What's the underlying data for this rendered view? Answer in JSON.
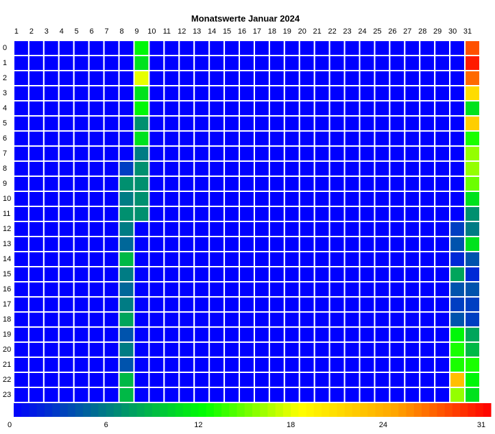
{
  "chart_data": {
    "type": "heatmap",
    "title": "Monatswerte Januar 2024",
    "x": [
      "1",
      "2",
      "3",
      "4",
      "5",
      "6",
      "7",
      "8",
      "9",
      "10",
      "11",
      "12",
      "13",
      "14",
      "15",
      "16",
      "17",
      "18",
      "19",
      "20",
      "21",
      "22",
      "23",
      "24",
      "25",
      "26",
      "27",
      "28",
      "29",
      "30",
      "31"
    ],
    "y": [
      "0",
      "1",
      "2",
      "3",
      "4",
      "5",
      "6",
      "7",
      "8",
      "9",
      "10",
      "11",
      "12",
      "13",
      "14",
      "15",
      "16",
      "17",
      "18",
      "19",
      "20",
      "21",
      "22",
      "23"
    ],
    "values": [
      [
        0,
        0,
        0,
        0,
        0,
        0,
        0,
        0,
        12,
        0,
        0,
        0,
        0,
        0,
        0,
        0,
        0,
        0,
        0,
        0,
        0,
        0,
        0,
        0,
        0,
        0,
        0,
        0,
        0,
        0,
        28
      ],
      [
        0,
        0,
        0,
        0,
        0,
        0,
        0,
        0,
        11,
        0,
        0,
        0,
        0,
        0,
        0,
        0,
        0,
        0,
        0,
        0,
        0,
        0,
        0,
        0,
        0,
        0,
        0,
        0,
        0,
        0,
        30
      ],
      [
        0,
        0,
        0,
        0,
        0,
        0,
        0,
        0,
        18,
        0,
        0,
        0,
        0,
        0,
        0,
        0,
        0,
        0,
        0,
        0,
        0,
        0,
        0,
        0,
        0,
        0,
        0,
        0,
        0,
        0,
        27
      ],
      [
        0,
        0,
        0,
        0,
        0,
        0,
        0,
        0,
        11,
        0,
        0,
        0,
        0,
        0,
        0,
        0,
        0,
        0,
        0,
        0,
        0,
        0,
        0,
        0,
        0,
        0,
        0,
        0,
        0,
        0,
        21
      ],
      [
        0,
        0,
        0,
        0,
        0,
        0,
        0,
        0,
        12,
        0,
        0,
        0,
        0,
        0,
        0,
        0,
        0,
        0,
        0,
        0,
        0,
        0,
        0,
        0,
        0,
        0,
        0,
        0,
        0,
        0,
        11
      ],
      [
        0,
        0,
        0,
        0,
        0,
        0,
        0,
        0,
        7,
        0,
        0,
        0,
        0,
        0,
        0,
        0,
        0,
        0,
        0,
        0,
        0,
        0,
        0,
        0,
        0,
        0,
        0,
        0,
        0,
        0,
        22
      ],
      [
        0,
        0,
        0,
        0,
        0,
        0,
        0,
        0,
        11,
        0,
        0,
        0,
        0,
        0,
        0,
        0,
        0,
        0,
        0,
        0,
        0,
        0,
        0,
        0,
        0,
        0,
        0,
        0,
        0,
        0,
        13
      ],
      [
        0,
        0,
        0,
        0,
        0,
        0,
        0,
        0,
        6,
        0,
        0,
        0,
        0,
        0,
        0,
        0,
        0,
        0,
        0,
        0,
        0,
        0,
        0,
        0,
        0,
        0,
        0,
        0,
        0,
        0,
        16
      ],
      [
        0,
        0,
        0,
        0,
        0,
        0,
        0,
        3,
        7,
        0,
        0,
        0,
        0,
        0,
        0,
        0,
        0,
        0,
        0,
        0,
        0,
        0,
        0,
        0,
        0,
        0,
        0,
        0,
        0,
        0,
        16
      ],
      [
        0,
        0,
        0,
        0,
        0,
        0,
        0,
        7,
        7,
        0,
        0,
        0,
        0,
        0,
        0,
        0,
        0,
        0,
        0,
        0,
        0,
        0,
        0,
        0,
        0,
        0,
        0,
        0,
        0,
        0,
        15
      ],
      [
        0,
        0,
        0,
        0,
        0,
        0,
        0,
        6,
        7,
        0,
        0,
        0,
        0,
        0,
        0,
        0,
        0,
        0,
        0,
        0,
        0,
        0,
        0,
        0,
        0,
        0,
        0,
        0,
        0,
        0,
        11
      ],
      [
        0,
        0,
        0,
        0,
        0,
        0,
        0,
        7,
        7,
        0,
        0,
        0,
        0,
        0,
        0,
        0,
        0,
        0,
        0,
        0,
        0,
        0,
        0,
        0,
        0,
        0,
        0,
        0,
        0,
        0,
        7
      ],
      [
        0,
        0,
        0,
        0,
        0,
        0,
        0,
        6,
        0,
        0,
        0,
        0,
        0,
        0,
        0,
        0,
        0,
        0,
        0,
        0,
        0,
        0,
        0,
        0,
        0,
        0,
        0,
        0,
        0,
        3,
        6
      ],
      [
        0,
        0,
        0,
        0,
        0,
        0,
        0,
        5,
        0,
        0,
        0,
        0,
        0,
        0,
        0,
        0,
        0,
        0,
        0,
        0,
        0,
        0,
        0,
        0,
        0,
        0,
        0,
        0,
        0,
        4,
        11
      ],
      [
        0,
        0,
        0,
        0,
        0,
        0,
        0,
        9,
        0,
        0,
        0,
        0,
        0,
        0,
        0,
        0,
        0,
        0,
        0,
        0,
        0,
        0,
        0,
        0,
        0,
        0,
        0,
        0,
        0,
        2,
        4
      ],
      [
        0,
        0,
        0,
        0,
        0,
        0,
        0,
        6,
        0,
        0,
        0,
        0,
        0,
        0,
        0,
        0,
        0,
        0,
        0,
        0,
        0,
        0,
        0,
        0,
        0,
        0,
        0,
        0,
        0,
        8,
        2
      ],
      [
        0,
        0,
        0,
        0,
        0,
        0,
        0,
        5,
        0,
        0,
        0,
        0,
        0,
        0,
        0,
        0,
        0,
        0,
        0,
        0,
        0,
        0,
        0,
        0,
        0,
        0,
        0,
        0,
        0,
        4,
        4
      ],
      [
        0,
        0,
        0,
        0,
        0,
        0,
        0,
        6,
        0,
        0,
        0,
        0,
        0,
        0,
        0,
        0,
        0,
        0,
        0,
        0,
        0,
        0,
        0,
        0,
        0,
        0,
        0,
        0,
        0,
        3,
        3
      ],
      [
        0,
        0,
        0,
        0,
        0,
        0,
        0,
        8,
        0,
        0,
        0,
        0,
        0,
        0,
        0,
        0,
        0,
        0,
        0,
        0,
        0,
        0,
        0,
        0,
        0,
        0,
        0,
        0,
        0,
        4,
        3
      ],
      [
        0,
        0,
        0,
        0,
        0,
        0,
        0,
        4,
        0,
        0,
        0,
        0,
        0,
        0,
        0,
        0,
        0,
        0,
        0,
        0,
        0,
        0,
        0,
        0,
        0,
        0,
        0,
        0,
        0,
        12,
        8
      ],
      [
        0,
        0,
        0,
        0,
        0,
        0,
        0,
        6,
        0,
        0,
        0,
        0,
        0,
        0,
        0,
        0,
        0,
        0,
        0,
        0,
        0,
        0,
        0,
        0,
        0,
        0,
        0,
        0,
        0,
        13,
        9
      ],
      [
        0,
        0,
        0,
        0,
        0,
        0,
        0,
        4,
        0,
        0,
        0,
        0,
        0,
        0,
        0,
        0,
        0,
        0,
        0,
        0,
        0,
        0,
        0,
        0,
        0,
        0,
        0,
        0,
        0,
        13,
        13
      ],
      [
        0,
        0,
        0,
        0,
        0,
        0,
        0,
        9,
        0,
        0,
        0,
        0,
        0,
        0,
        0,
        0,
        0,
        0,
        0,
        0,
        0,
        0,
        0,
        0,
        0,
        0,
        0,
        0,
        0,
        23,
        12
      ],
      [
        0,
        0,
        0,
        0,
        0,
        0,
        0,
        9,
        0,
        0,
        0,
        0,
        0,
        0,
        0,
        0,
        0,
        0,
        0,
        0,
        0,
        0,
        0,
        0,
        0,
        0,
        0,
        0,
        0,
        16,
        11
      ]
    ],
    "colorscale": [
      "#0000ff",
      "#008080",
      "#00ff00",
      "#ffff00",
      "#ffa500",
      "#ff0000"
    ],
    "clim": [
      0,
      31
    ],
    "cticks": [
      0,
      6,
      12,
      18,
      24,
      31
    ]
  }
}
